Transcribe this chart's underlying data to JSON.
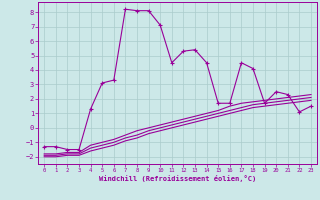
{
  "background_color": "#cce8e8",
  "grid_color": "#aacccc",
  "line_color": "#990099",
  "xlabel": "Windchill (Refroidissement éolien,°C)",
  "xlim": [
    -0.5,
    23.5
  ],
  "ylim": [
    -2.5,
    8.7
  ],
  "xticks": [
    0,
    1,
    2,
    3,
    4,
    5,
    6,
    7,
    8,
    9,
    10,
    11,
    12,
    13,
    14,
    15,
    16,
    17,
    18,
    19,
    20,
    21,
    22,
    23
  ],
  "yticks": [
    -2,
    -1,
    0,
    1,
    2,
    3,
    4,
    5,
    6,
    7,
    8
  ],
  "series1_x": [
    0,
    1,
    2,
    3,
    4,
    5,
    6,
    7,
    8,
    9,
    10,
    11,
    12,
    13,
    14,
    15,
    16,
    17,
    18,
    19,
    20,
    21,
    22,
    23
  ],
  "series1_y": [
    -1.3,
    -1.3,
    -1.5,
    -1.5,
    1.3,
    3.1,
    3.3,
    8.2,
    8.1,
    8.1,
    7.1,
    4.5,
    5.3,
    5.4,
    4.5,
    1.7,
    1.7,
    4.5,
    4.1,
    1.7,
    2.5,
    2.3,
    1.1,
    1.5
  ],
  "series2_x": [
    0,
    1,
    2,
    3,
    4,
    5,
    6,
    7,
    8,
    9,
    10,
    11,
    12,
    13,
    14,
    15,
    16,
    17,
    18,
    19,
    20,
    21,
    22,
    23
  ],
  "series2_y": [
    -1.8,
    -1.8,
    -1.7,
    -1.7,
    -1.2,
    -1.0,
    -0.8,
    -0.5,
    -0.2,
    0.0,
    0.2,
    0.4,
    0.6,
    0.8,
    1.0,
    1.2,
    1.5,
    1.7,
    1.8,
    1.9,
    2.0,
    2.1,
    2.2,
    2.3
  ],
  "series3_x": [
    0,
    1,
    2,
    3,
    4,
    5,
    6,
    7,
    8,
    9,
    10,
    11,
    12,
    13,
    14,
    15,
    16,
    17,
    18,
    19,
    20,
    21,
    22,
    23
  ],
  "series3_y": [
    -1.9,
    -1.9,
    -1.8,
    -1.8,
    -1.4,
    -1.2,
    -1.0,
    -0.7,
    -0.5,
    -0.2,
    0.0,
    0.2,
    0.4,
    0.6,
    0.8,
    1.0,
    1.2,
    1.4,
    1.6,
    1.7,
    1.8,
    1.9,
    2.0,
    2.1
  ],
  "series4_x": [
    0,
    1,
    2,
    3,
    4,
    5,
    6,
    7,
    8,
    9,
    10,
    11,
    12,
    13,
    14,
    15,
    16,
    17,
    18,
    19,
    20,
    21,
    22,
    23
  ],
  "series4_y": [
    -2.0,
    -2.0,
    -1.9,
    -1.9,
    -1.6,
    -1.4,
    -1.2,
    -0.9,
    -0.7,
    -0.4,
    -0.2,
    0.0,
    0.2,
    0.4,
    0.6,
    0.8,
    1.0,
    1.2,
    1.4,
    1.5,
    1.6,
    1.7,
    1.8,
    1.9
  ]
}
